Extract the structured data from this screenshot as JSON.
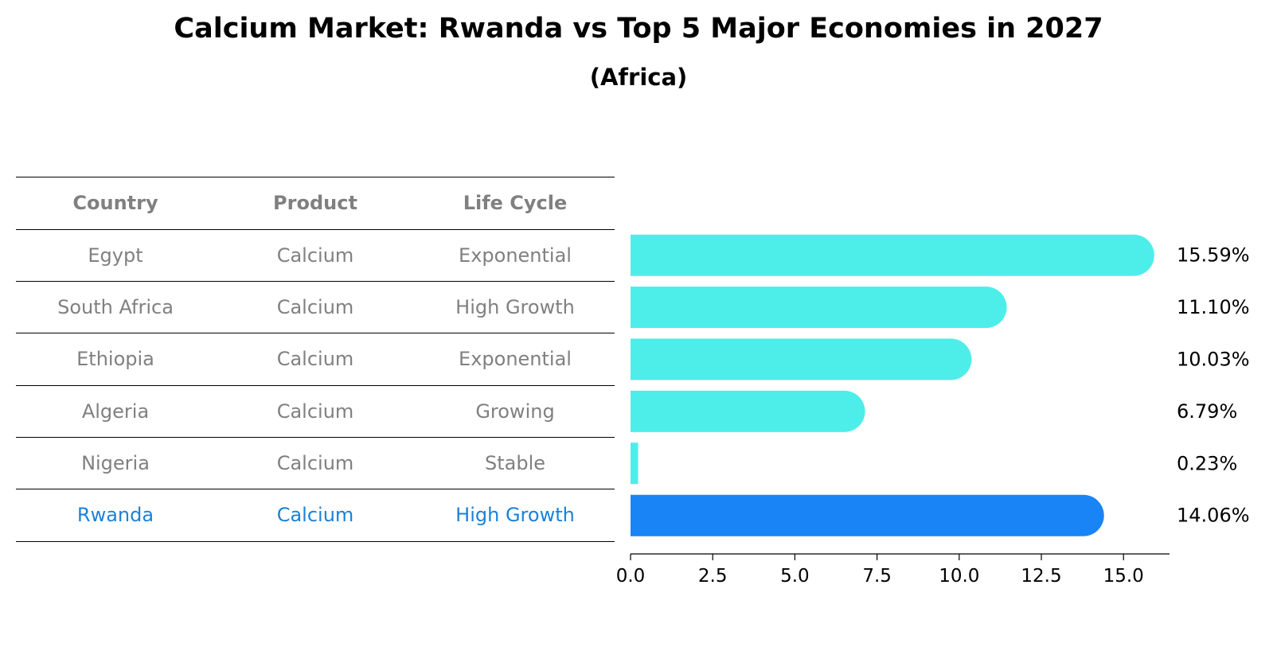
{
  "title": "Calcium Market: Rwanda vs Top 5 Major Economies in 2027",
  "subtitle": "(Africa)",
  "table": {
    "headers": [
      "Country",
      "Product",
      "Life Cycle"
    ],
    "rows": [
      {
        "country": "Egypt",
        "product": "Calcium",
        "life_cycle": "Exponential"
      },
      {
        "country": "South Africa",
        "product": "Calcium",
        "life_cycle": "High Growth"
      },
      {
        "country": "Ethiopia",
        "product": "Calcium",
        "life_cycle": "Exponential"
      },
      {
        "country": "Algeria",
        "product": "Calcium",
        "life_cycle": "Growing"
      },
      {
        "country": "Nigeria",
        "product": "Calcium",
        "life_cycle": "Stable"
      },
      {
        "country": "Rwanda",
        "product": "Calcium",
        "life_cycle": "High Growth"
      }
    ]
  },
  "colors": {
    "bar": "#4deeea",
    "highlight_bar": "#1984f5",
    "highlight_text": "#1a82d9",
    "table_text": "#808080"
  },
  "chart_data": {
    "type": "bar",
    "orientation": "horizontal",
    "categories": [
      "Egypt",
      "South Africa",
      "Ethiopia",
      "Algeria",
      "Nigeria",
      "Rwanda"
    ],
    "values": [
      15.59,
      11.1,
      10.03,
      6.79,
      0.23,
      14.06
    ],
    "value_labels": [
      "15.59%",
      "11.10%",
      "10.03%",
      "6.79%",
      "0.23%",
      "14.06%"
    ],
    "highlight": "Rwanda",
    "xlim": [
      0,
      16.4
    ],
    "xticks": [
      0.0,
      2.5,
      5.0,
      7.5,
      10.0,
      12.5,
      15.0
    ],
    "xtick_labels": [
      "0.0",
      "2.5",
      "5.0",
      "7.5",
      "10.0",
      "12.5",
      "15.0"
    ],
    "xlabel": "",
    "ylabel": "",
    "grid": false
  }
}
